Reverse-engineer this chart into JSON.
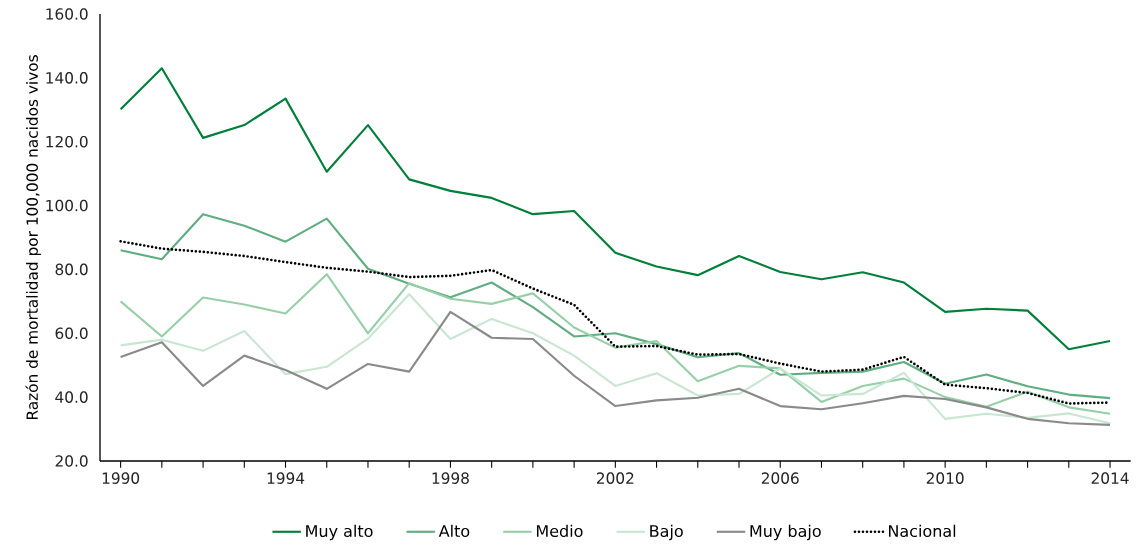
{
  "chart_data": {
    "type": "line",
    "ylabel": "Razón de mortalidad por 100,000 nacidos vivos",
    "x": [
      1990,
      1991,
      1992,
      1993,
      1994,
      1995,
      1996,
      1997,
      1998,
      1999,
      2000,
      2001,
      2002,
      2003,
      2004,
      2005,
      2006,
      2007,
      2008,
      2009,
      2010,
      2011,
      2012,
      2013,
      2014
    ],
    "series": [
      {
        "name": "Muy alto",
        "color": "#007f3a",
        "values": [
          130.2,
          143.0,
          121.2,
          125.2,
          133.5,
          110.6,
          125.2,
          108.2,
          104.6,
          102.4,
          97.3,
          98.3,
          85.2,
          80.9,
          78.2,
          84.2,
          79.2,
          76.9,
          79.1,
          75.9,
          66.7,
          67.7,
          67.1,
          55.0,
          57.6
        ]
      },
      {
        "name": "Alto",
        "color": "#5fad80",
        "values": [
          86.0,
          83.2,
          97.3,
          93.7,
          88.7,
          95.9,
          80.2,
          75.5,
          71.3,
          75.9,
          68.2,
          59.0,
          60.0,
          56.6,
          52.5,
          53.8,
          47.0,
          47.6,
          48.0,
          51.0,
          44.2,
          47.1,
          43.4,
          40.8,
          39.7
        ]
      },
      {
        "name": "Medio",
        "color": "#97cfa8",
        "values": [
          70.0,
          59.0,
          71.2,
          69.0,
          66.2,
          78.5,
          60.0,
          75.7,
          70.8,
          69.2,
          72.5,
          61.8,
          55.5,
          57.6,
          45.0,
          49.8,
          49.0,
          38.5,
          43.5,
          45.8,
          40.0,
          37.0,
          41.7,
          36.8,
          34.8
        ]
      },
      {
        "name": "Bajo",
        "color": "#c9e6d2",
        "values": [
          56.2,
          58.0,
          54.5,
          60.7,
          47.2,
          49.5,
          58.3,
          72.2,
          58.2,
          64.5,
          60.0,
          53.0,
          43.5,
          47.5,
          40.5,
          41.0,
          49.0,
          40.5,
          41.0,
          47.6,
          33.2,
          34.8,
          33.5,
          34.9,
          31.8
        ]
      },
      {
        "name": "Muy bajo",
        "color": "#8a8a8a",
        "values": [
          52.6,
          57.2,
          43.5,
          53.0,
          48.5,
          42.6,
          50.4,
          48.0,
          66.7,
          58.6,
          58.2,
          46.7,
          37.2,
          39.0,
          39.8,
          42.6,
          37.2,
          36.2,
          38.1,
          40.4,
          39.4,
          36.8,
          33.2,
          31.8,
          31.3
        ]
      },
      {
        "name": "Nacional",
        "color": "#000000",
        "line_style": "dotted",
        "values": [
          88.8,
          86.5,
          85.5,
          84.2,
          82.3,
          80.5,
          79.3,
          77.6,
          78.0,
          79.8,
          74.0,
          68.9,
          55.8,
          56.0,
          53.3,
          53.5,
          50.5,
          48.0,
          48.6,
          52.6,
          43.9,
          42.8,
          41.3,
          38.0,
          38.3
        ]
      }
    ],
    "xlim": [
      1989.5,
      2014.5
    ],
    "xticks": [
      1990,
      {
        "value": 1991,
        "label": null
      },
      {
        "value": 1992,
        "label": null
      },
      {
        "value": 1993,
        "label": null
      },
      1994,
      {
        "value": 1995,
        "label": null
      },
      {
        "value": 1996,
        "label": null
      },
      {
        "value": 1997,
        "label": null
      },
      1998,
      {
        "value": 1999,
        "label": null
      },
      {
        "value": 2000,
        "label": null
      },
      {
        "value": 2001,
        "label": null
      },
      2002,
      {
        "value": 2003,
        "label": null
      },
      {
        "value": 2004,
        "label": null
      },
      {
        "value": 2005,
        "label": null
      },
      2006,
      {
        "value": 2007,
        "label": null
      },
      {
        "value": 2008,
        "label": null
      },
      {
        "value": 2009,
        "label": null
      },
      2010,
      {
        "value": 2011,
        "label": null
      },
      {
        "value": 2012,
        "label": null
      },
      {
        "value": 2013,
        "label": null
      },
      2014
    ],
    "ylim": [
      20,
      160
    ],
    "yticks": [
      {
        "value": 20,
        "label": "20.0"
      },
      {
        "value": 40,
        "label": "40.0"
      },
      {
        "value": 60,
        "label": "60.0"
      },
      {
        "value": 80,
        "label": "80.0"
      },
      {
        "value": 100,
        "label": "100.0"
      },
      {
        "value": 120,
        "label": "120.0"
      },
      {
        "value": 140,
        "label": "140.0"
      },
      {
        "value": 160,
        "label": "160.0"
      }
    ],
    "grid": false,
    "legend": "bottom",
    "marker": "none",
    "line_style": "solid"
  }
}
